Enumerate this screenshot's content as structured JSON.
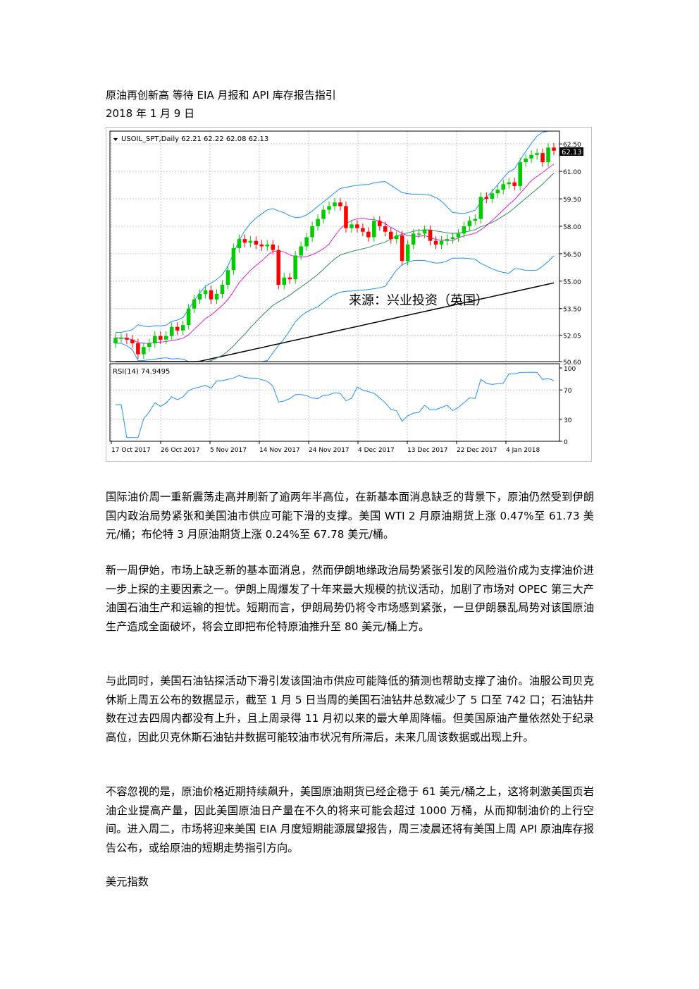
{
  "article": {
    "title": "原油再创新高 等待 EIA 月报和 API 库存报告指引",
    "date": "2018 年 1 月 9 日"
  },
  "chart": {
    "symbol_line": "USOIL_SPT,Daily  62.21 62.22 62.08 62.13",
    "price_badge": "62.13",
    "watermark": "来源：兴业投资（英国）",
    "price_ticks": [
      "62.50",
      "61.00",
      "59.50",
      "58.00",
      "56.50",
      "55.00",
      "53.50",
      "52.05",
      "50.60"
    ],
    "rsi_label": "RSI(14) 74.9495",
    "rsi_ticks": [
      "100",
      "70",
      "30",
      "0"
    ],
    "date_ticks": [
      "17 Oct 2017",
      "26 Oct 2017",
      "5 Nov 2017",
      "14 Nov 2017",
      "24 Nov 2017",
      "4 Dec 2017",
      "13 Dec 2017",
      "22 Dec 2017",
      "4 Jan 2018"
    ],
    "colors": {
      "up": "#00cc00",
      "down": "#ff0000",
      "ma_black": "#000000",
      "ma_green": "#2e8b57",
      "ma_magenta": "#e020e0",
      "bollinger": "#1e90ff",
      "rsi": "#1e90ff",
      "frame": "#c0c0c0"
    }
  },
  "chart_data": {
    "type": "candlestick",
    "ylim": [
      50.6,
      63.2
    ],
    "closes": [
      51.9,
      51.9,
      51.8,
      51.6,
      51.0,
      51.4,
      51.6,
      52.0,
      51.8,
      52.0,
      52.5,
      52.3,
      52.6,
      53.5,
      54.0,
      54.3,
      54.5,
      54.0,
      54.3,
      54.8,
      55.6,
      56.8,
      57.3,
      57.1,
      57.2,
      57.0,
      56.9,
      57.0,
      56.7,
      54.8,
      55.2,
      55.1,
      56.4,
      56.9,
      57.4,
      58.0,
      58.4,
      58.9,
      59.1,
      59.3,
      59.1,
      57.9,
      58.1,
      57.9,
      57.7,
      57.4,
      58.3,
      58.0,
      57.7,
      57.3,
      57.5,
      56.1,
      57.0,
      57.6,
      57.6,
      57.8,
      57.2,
      57.0,
      57.2,
      57.3,
      57.4,
      57.6,
      58.0,
      58.3,
      58.4,
      59.6,
      59.5,
      59.8,
      60.0,
      60.3,
      60.4,
      60.2,
      61.5,
      61.7,
      61.9,
      62.0,
      61.5,
      62.3,
      62.13
    ]
  },
  "body": {
    "p1": "国际油价周一重新震荡走高并刷新了逾两年半高位，在新基本面消息缺乏的背景下，原油仍然受到伊朗国内政治局势紧张和美国油市供应可能下滑的支撑。美国 WTI 2 月原油期货上涨 0.47%至 61.73 美元/桶；布伦特 3 月原油期货上涨 0.24%至 67.78 美元/桶。",
    "p2": "新一周伊始，市场上缺乏新的基本面消息，然而伊朗地缘政治局势紧张引发的风险溢价成为支撑油价进一步上探的主要因素之一。伊朗上周爆发了十年来最大规模的抗议活动，加剧了市场对 OPEC 第三大产油国石油生产和运输的担忧。短期而言，伊朗局势仍将令市场感到紧张，一旦伊朗暴乱局势对该国原油生产造成全面破坏，将会立即把布伦特原油推升至 80 美元/桶上方。",
    "p3": "与此同时，美国石油钻探活动下滑引发该国油市供应可能降低的猜测也帮助支撑了油价。油服公司贝克休斯上周五公布的数据显示，截至 1 月 5 日当周的美国石油钻井总数减少了 5 口至 742 口；石油钻井数在过去四周内都没有上升，且上周录得 11 月初以来的最大单周降幅。但美国原油产量依然处于纪录高位，因此贝克休斯石油钻井数据可能较油市状况有所滞后，未来几周该数据或出现上升。",
    "p4": "不容忽视的是，原油价格近期持续飙升，美国原油期货已经企稳于 61 美元/桶之上，这将刺激美国页岩油企业提高产量，因此美国原油日产量在不久的将来可能会超过 1000 万桶，从而抑制油价的上行空间。进入周二，市场将迎来美国 EIA 月度短期能源展望报告，周三凌晨还将有美国上周 API 原油库存报告公布，或给原油的短期走势指引方向。",
    "next_heading": "美元指数"
  }
}
